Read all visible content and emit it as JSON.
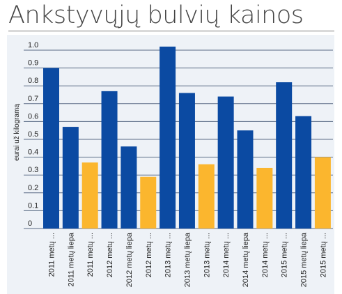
{
  "chart_data": {
    "type": "bar",
    "title": "Ankstyvųjų bulvių kainos",
    "ylabel": "eurai už kilogramą",
    "xlabel": "",
    "ylim": [
      0,
      1.05
    ],
    "yticks": [
      {
        "value": 0,
        "label": "0"
      },
      {
        "value": 0.1,
        "label": "0.1"
      },
      {
        "value": 0.2,
        "label": "0.2"
      },
      {
        "value": 0.3,
        "label": "0.3"
      },
      {
        "value": 0.4,
        "label": "0.4"
      },
      {
        "value": 0.5,
        "label": "0.5"
      },
      {
        "value": 0.6,
        "label": "0.6"
      },
      {
        "value": 0.7,
        "label": "0.7"
      },
      {
        "value": 0.8,
        "label": "0.8"
      },
      {
        "value": 0.9,
        "label": "0.9"
      },
      {
        "value": 1.0,
        "label": "1.0"
      }
    ],
    "grid": true,
    "legend": "none",
    "colors": {
      "blue": "#0b4aa2",
      "orange": "#fbb62e",
      "grid": "#5a6b85",
      "background": "#eef2f7"
    },
    "categories": [
      "2011 metų ...",
      "2011 metų liepa",
      "2011 metų ...",
      "2012 metų ...",
      "2012 metų liepa",
      "2012 metų ...",
      "2013 metų ...",
      "2013 metų liepa",
      "2013 metų ...",
      "2014 metų ...",
      "2014 metų liepa",
      "2014 metų ...",
      "2015 metų ...",
      "2015 metų liepa",
      "2015 metų ..."
    ],
    "values": [
      0.9,
      0.57,
      0.37,
      0.77,
      0.46,
      0.29,
      1.02,
      0.76,
      0.36,
      0.74,
      0.55,
      0.34,
      0.82,
      0.63,
      0.4
    ],
    "bar_colors": [
      "blue",
      "blue",
      "orange",
      "blue",
      "blue",
      "orange",
      "blue",
      "blue",
      "orange",
      "blue",
      "blue",
      "orange",
      "blue",
      "blue",
      "orange"
    ]
  }
}
